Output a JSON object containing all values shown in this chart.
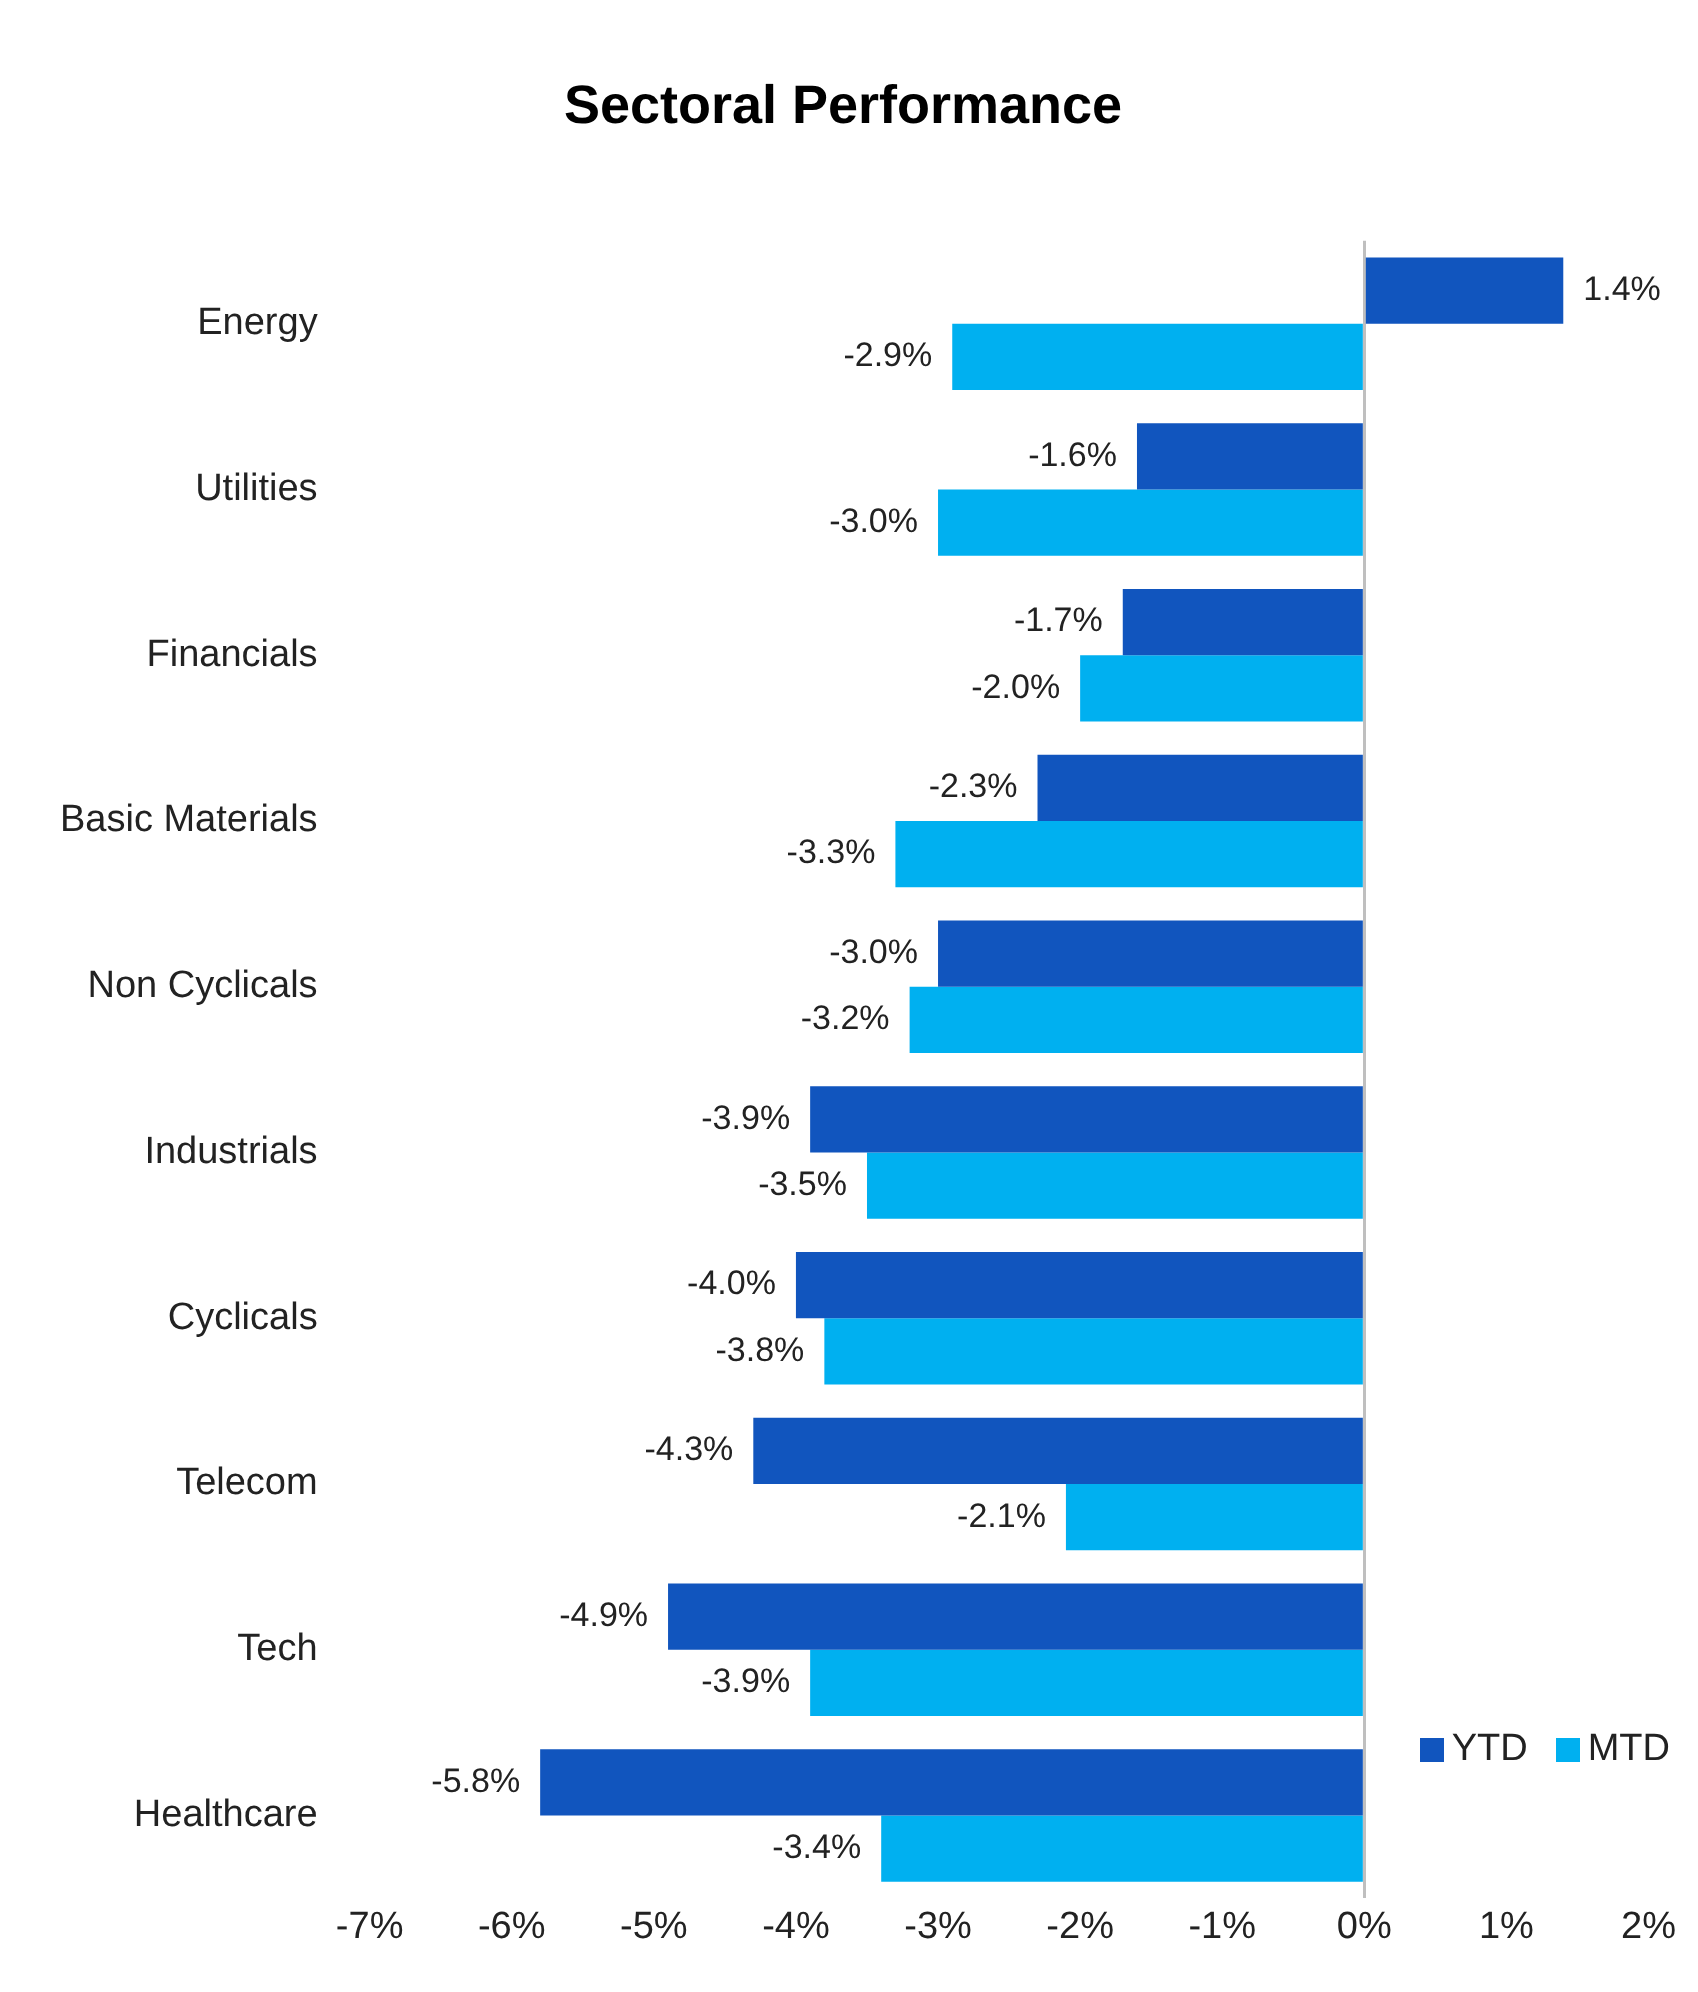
{
  "chart_data": {
    "type": "bar",
    "orientation": "horizontal",
    "title": "Sectoral Performance",
    "categories": [
      "Energy",
      "Utilities",
      "Financials",
      "Basic Materials",
      "Non Cyclicals",
      "Industrials",
      "Cyclicals",
      "Telecom",
      "Tech",
      "Healthcare"
    ],
    "series": [
      {
        "name": "YTD",
        "color": "#1155be",
        "values": [
          1.4,
          -1.6,
          -1.7,
          -2.3,
          -3.0,
          -3.9,
          -4.0,
          -4.3,
          -4.9,
          -5.8
        ],
        "value_labels": [
          "1.4%",
          "-1.6%",
          "-1.7%",
          "-2.3%",
          "-3.0%",
          "-3.9%",
          "-4.0%",
          "-4.3%",
          "-4.9%",
          "-5.8%"
        ]
      },
      {
        "name": "MTD",
        "color": "#00b0f0",
        "values": [
          -2.9,
          -3.0,
          -2.0,
          -3.3,
          -3.2,
          -3.5,
          -3.8,
          -2.1,
          -3.9,
          -3.4
        ],
        "value_labels": [
          "-2.9%",
          "-3.0%",
          "-2.0%",
          "-3.3%",
          "-3.2%",
          "-3.5%",
          "-3.8%",
          "-2.1%",
          "-3.9%",
          "-3.4%"
        ]
      }
    ],
    "xlim": [
      -7,
      2
    ],
    "xticks": [
      {
        "value": -7,
        "label": "-7%"
      },
      {
        "value": -6,
        "label": "-6%"
      },
      {
        "value": -5,
        "label": "-5%"
      },
      {
        "value": -4,
        "label": "-4%"
      },
      {
        "value": -3,
        "label": "-3%"
      },
      {
        "value": -2,
        "label": "-2%"
      },
      {
        "value": -1,
        "label": "-1%"
      },
      {
        "value": 0,
        "label": "0%"
      },
      {
        "value": 1,
        "label": "1%"
      },
      {
        "value": 2,
        "label": "2%"
      }
    ],
    "legend": "bottom right"
  }
}
